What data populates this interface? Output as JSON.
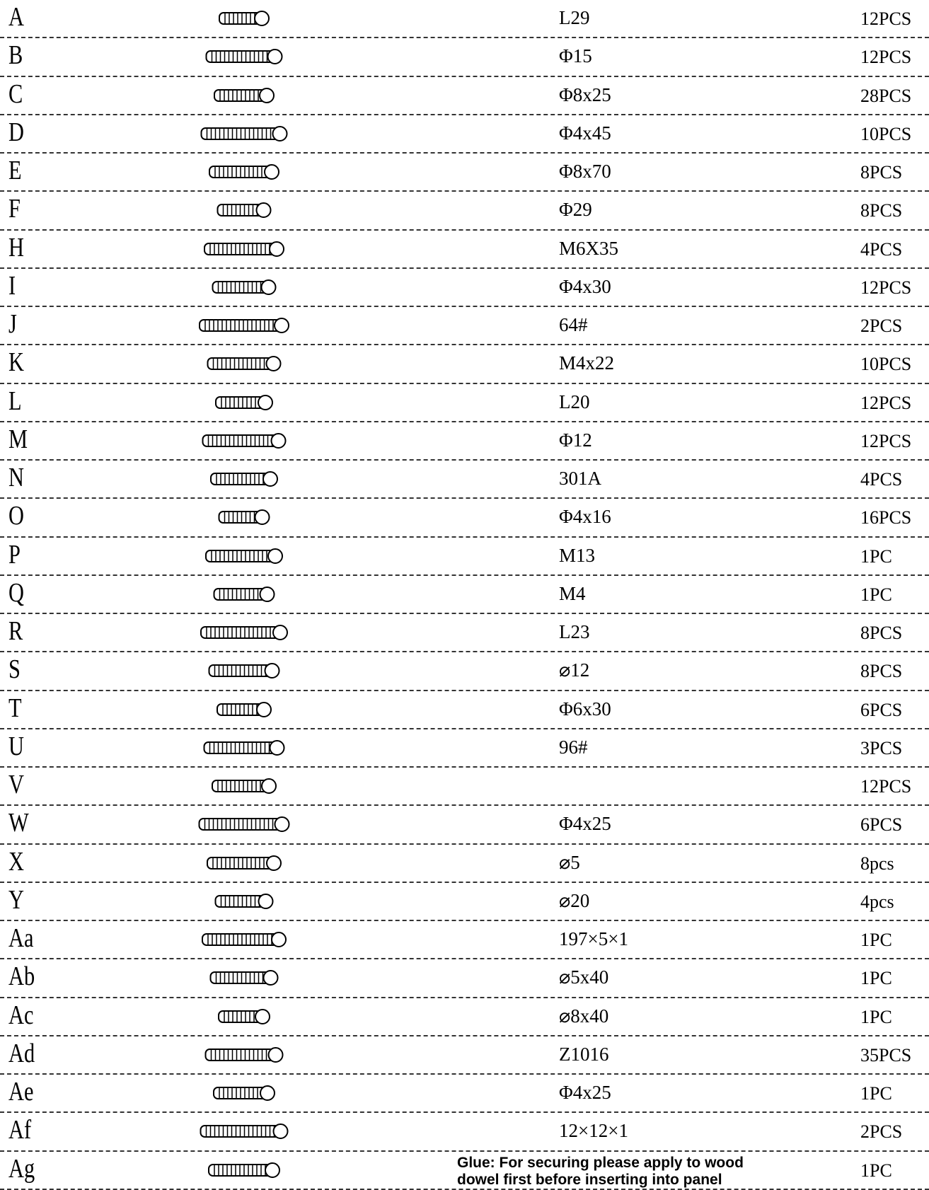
{
  "parts": [
    {
      "letter": "A",
      "size": "L29",
      "qty": "12PCS"
    },
    {
      "letter": "B",
      "size": "Φ15",
      "qty": "12PCS"
    },
    {
      "letter": "C",
      "size": "Φ8x25",
      "qty": "28PCS"
    },
    {
      "letter": "D",
      "size": "Φ4x45",
      "qty": "10PCS"
    },
    {
      "letter": "E",
      "size": "Φ8x70",
      "qty": "8PCS"
    },
    {
      "letter": "F",
      "size": "Φ29",
      "qty": "8PCS"
    },
    {
      "letter": "H",
      "size": "M6X35",
      "qty": "4PCS"
    },
    {
      "letter": "I",
      "size": "Φ4x30",
      "qty": "12PCS"
    },
    {
      "letter": "J",
      "size": "64#",
      "qty": "2PCS"
    },
    {
      "letter": "K",
      "size": "M4x22",
      "qty": "10PCS"
    },
    {
      "letter": "L",
      "size": "L20",
      "qty": "12PCS"
    },
    {
      "letter": "M",
      "size": "Φ12",
      "qty": "12PCS"
    },
    {
      "letter": "N",
      "size": "301A",
      "qty": "4PCS"
    },
    {
      "letter": "O",
      "size": "Φ4x16",
      "qty": "16PCS"
    },
    {
      "letter": "P",
      "size": "M13",
      "qty": "1PC"
    },
    {
      "letter": "Q",
      "size": "M4",
      "qty": "1PC"
    },
    {
      "letter": "R",
      "size": "L23",
      "qty": "8PCS"
    },
    {
      "letter": "S",
      "size": "⌀12",
      "qty": "8PCS"
    },
    {
      "letter": "T",
      "size": "Φ6x30",
      "qty": "6PCS"
    },
    {
      "letter": "U",
      "size": "96#",
      "qty": "3PCS"
    },
    {
      "letter": "V",
      "qty": "12PCS"
    },
    {
      "letter": "W",
      "size": "Φ4x25",
      "qty": "6PCS"
    },
    {
      "letter": "X",
      "size": "⌀5",
      "qty": "8pcs"
    },
    {
      "letter": "Y",
      "size": "⌀20",
      "qty": "4pcs"
    },
    {
      "letter": "Aa",
      "size": "197×5×1",
      "qty": "1PC"
    },
    {
      "letter": "Ab",
      "size": "⌀5x40",
      "qty": "1PC"
    },
    {
      "letter": "Ac",
      "size": "⌀8x40",
      "qty": "1PC"
    },
    {
      "letter": "Ad",
      "size": "Z1016",
      "qty": "35PCS"
    },
    {
      "letter": "Ae",
      "size": "Φ4x25",
      "qty": "1PC"
    },
    {
      "letter": "Af",
      "size": "12×12×1",
      "qty": "2PCS"
    },
    {
      "letter": "Ag",
      "size": "Glue: For securing please apply to wood dowel first before inserting into panel",
      "qty": "1PC"
    }
  ]
}
